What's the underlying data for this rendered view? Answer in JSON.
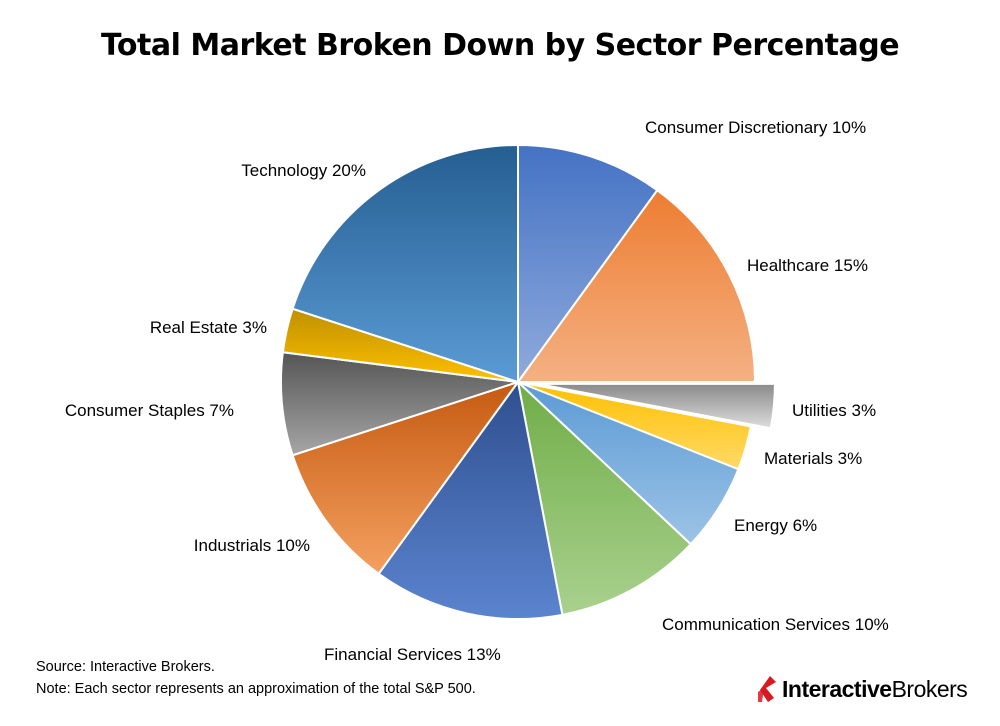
{
  "colors": {
    "brand_red": "#d71a21",
    "text": "#000000"
  },
  "chart_data": {
    "type": "pie",
    "title": "Total Market Broken Down by Sector Percentage",
    "slices": [
      {
        "label": "Consumer Discretionary 10%",
        "value": 10,
        "color_a": "#4472c4",
        "color_b": "#8faadc",
        "exploded": false
      },
      {
        "label": "Healthcare 15%",
        "value": 15,
        "color_a": "#ed7d31",
        "color_b": "#f4b183",
        "exploded": false
      },
      {
        "label": "Utilities 3%",
        "value": 3,
        "color_a": "#8a8a8a",
        "color_b": "#dddddd",
        "exploded": true
      },
      {
        "label": "Materials 3%",
        "value": 3,
        "color_a": "#ffc000",
        "color_b": "#ffd966",
        "exploded": false
      },
      {
        "label": "Energy 6%",
        "value": 6,
        "color_a": "#5b9bd5",
        "color_b": "#9dc3e6",
        "exploded": false
      },
      {
        "label": "Communication Services 10%",
        "value": 10,
        "color_a": "#70ad47",
        "color_b": "#a9d18e",
        "exploded": false
      },
      {
        "label": "Financial Services 13%",
        "value": 13,
        "color_a": "#2f4f8f",
        "color_b": "#5b84cf",
        "exploded": false
      },
      {
        "label": "Industrials 10%",
        "value": 10,
        "color_a": "#c55a11",
        "color_b": "#f4a060",
        "exploded": false
      },
      {
        "label": "Consumer Staples 7%",
        "value": 7,
        "color_a": "#555555",
        "color_b": "#a6a6a6",
        "exploded": false
      },
      {
        "label": "Real Estate 3%",
        "value": 3,
        "color_a": "#bf9000",
        "color_b": "#ffc000",
        "exploded": false
      },
      {
        "label": "Technology 20%",
        "value": 20,
        "color_a": "#255e91",
        "color_b": "#5b9bd5",
        "exploded": false
      }
    ]
  },
  "footer": {
    "source": "Source: Interactive Brokers.",
    "note": "Note: Each sector represents an approximation of the total S&P 500."
  },
  "brand": {
    "part1": "Interactive",
    "part2": "Brokers",
    "icon": "interactive-brokers-logo-icon"
  }
}
